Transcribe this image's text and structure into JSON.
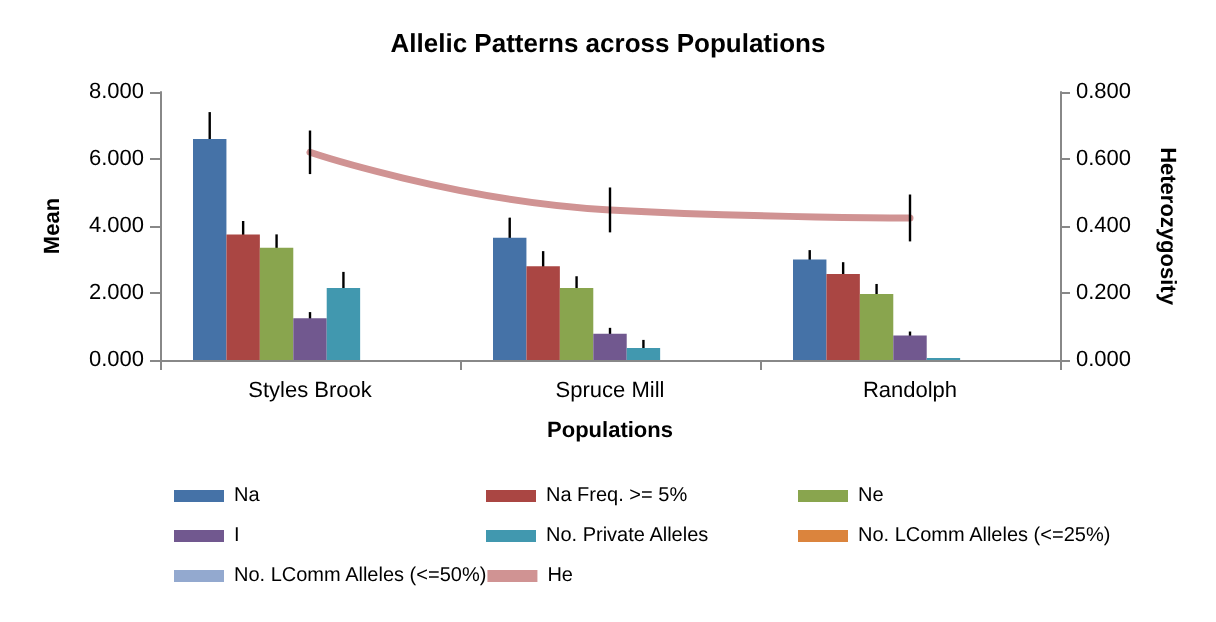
{
  "chart_data": {
    "type": "bar",
    "title": "Allelic Patterns across Populations",
    "xlabel": "Populations",
    "ylabel": "Mean",
    "y2label": "Heterozygosity",
    "categories": [
      "Styles Brook",
      "Spruce Mill",
      "Randolph"
    ],
    "series": [
      {
        "name": "Na",
        "color": "#4572a7",
        "values": [
          6.6,
          3.65,
          3.0
        ],
        "errors": [
          0.8,
          0.6,
          0.28
        ]
      },
      {
        "name": "Na Freq. >= 5%",
        "color": "#aa4643",
        "values": [
          3.75,
          2.8,
          2.57
        ],
        "errors": [
          0.4,
          0.45,
          0.35
        ]
      },
      {
        "name": "Ne",
        "color": "#89a54e",
        "values": [
          3.35,
          2.15,
          1.97
        ],
        "errors": [
          0.4,
          0.35,
          0.3
        ]
      },
      {
        "name": "I",
        "color": "#71588f",
        "values": [
          1.25,
          0.78,
          0.73
        ],
        "errors": [
          0.18,
          0.18,
          0.12
        ]
      },
      {
        "name": "No. Private Alleles",
        "color": "#4198af",
        "values": [
          2.15,
          0.36,
          0.06
        ],
        "errors": [
          0.48,
          0.24,
          null
        ]
      },
      {
        "name": "No. LComm Alleles (<=25%)",
        "color": "#db843d",
        "values": [
          0,
          0,
          0
        ]
      },
      {
        "name": "No. LComm Alleles (<=50%)",
        "color": "#93a9cf",
        "values": [
          0,
          0,
          0
        ]
      },
      {
        "name": "He",
        "type": "line",
        "axis": "y2",
        "color": "#d09393",
        "values": [
          0.62,
          0.448,
          0.424
        ],
        "errors": [
          0.065,
          0.067,
          0.07
        ]
      }
    ],
    "ylim": [
      0,
      8
    ],
    "yticks": [
      {
        "value": 0,
        "label": "0.000"
      },
      {
        "value": 2,
        "label": "2.000"
      },
      {
        "value": 4,
        "label": "4.000"
      },
      {
        "value": 6,
        "label": "6.000"
      },
      {
        "value": 8,
        "label": "8.000"
      }
    ],
    "y2lim": [
      0,
      0.8
    ],
    "y2ticks": [
      {
        "value": 0,
        "label": "0.000"
      },
      {
        "value": 0.2,
        "label": "0.200"
      },
      {
        "value": 0.4,
        "label": "0.400"
      },
      {
        "value": 0.6,
        "label": "0.600"
      },
      {
        "value": 0.8,
        "label": "0.800"
      }
    ],
    "grid": false,
    "legend": "bottom",
    "marker": "none"
  }
}
